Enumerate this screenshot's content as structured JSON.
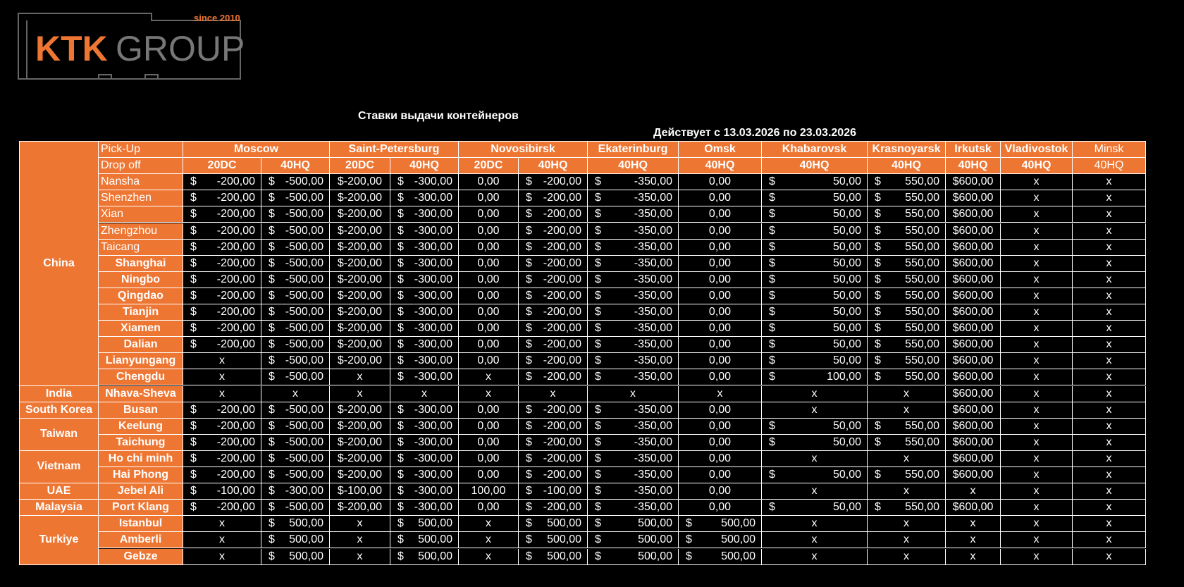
{
  "logo": {
    "tagline": "since 2010",
    "brand_accent": "KTK",
    "brand": "GROUP"
  },
  "title": "Ставки выдачи контейнеров",
  "validity": "Действует с 13.03.2026 по 23.03.2026",
  "table": {
    "pickup_label": "Pick-Up",
    "dropoff_label": "Drop off",
    "cities": [
      {
        "name": "Moscow",
        "types": [
          "20DC",
          "40HQ"
        ]
      },
      {
        "name": "Saint-Petersburg",
        "types": [
          "20DC",
          "40HQ"
        ]
      },
      {
        "name": "Novosibirsk",
        "types": [
          "20DC",
          "40HQ"
        ]
      },
      {
        "name": "Ekaterinburg",
        "types": [
          "40HQ"
        ]
      },
      {
        "name": "Omsk",
        "types": [
          "40HQ"
        ]
      },
      {
        "name": "Khabarovsk",
        "types": [
          "40HQ"
        ]
      },
      {
        "name": "Krasnoyarsk",
        "types": [
          "40HQ"
        ]
      },
      {
        "name": "Irkutsk",
        "types": [
          "40HQ"
        ]
      },
      {
        "name": "Vladivostok",
        "types": [
          "40HQ"
        ]
      },
      {
        "name": "Minsk",
        "types": [
          "40HQ"
        ]
      }
    ],
    "groups": [
      {
        "name": "China",
        "rows": [
          {
            "port": "Nansha",
            "cells": [
              [
                "$",
                "-200,00"
              ],
              [
                "$",
                "-500,00"
              ],
              "$-200,00",
              [
                "$",
                "-300,00"
              ],
              "0,00",
              [
                "$",
                "-200,00"
              ],
              [
                "$",
                "-350,00"
              ],
              "0,00",
              [
                "$",
                "50,00"
              ],
              [
                "$",
                "550,00"
              ],
              "$600,00",
              "x",
              "x"
            ]
          },
          {
            "port": "Shenzhen",
            "cells": [
              [
                "$",
                "-200,00"
              ],
              [
                "$",
                "-500,00"
              ],
              "$-200,00",
              [
                "$",
                "-300,00"
              ],
              "0,00",
              [
                "$",
                "-200,00"
              ],
              [
                "$",
                "-350,00"
              ],
              "0,00",
              [
                "$",
                "50,00"
              ],
              [
                "$",
                "550,00"
              ],
              "$600,00",
              "x",
              "x"
            ]
          },
          {
            "port": "Xian",
            "cells": [
              [
                "$",
                "-200,00"
              ],
              [
                "$",
                "-500,00"
              ],
              "$-200,00",
              [
                "$",
                "-300,00"
              ],
              "0,00",
              [
                "$",
                "-200,00"
              ],
              [
                "$",
                "-350,00"
              ],
              "0,00",
              [
                "$",
                "50,00"
              ],
              [
                "$",
                "550,00"
              ],
              "$600,00",
              "x",
              "x"
            ]
          },
          {
            "port": "Zhengzhou",
            "cells": [
              [
                "$",
                "-200,00"
              ],
              [
                "$",
                "-500,00"
              ],
              "$-200,00",
              [
                "$",
                "-300,00"
              ],
              "0,00",
              [
                "$",
                "-200,00"
              ],
              [
                "$",
                "-350,00"
              ],
              "0,00",
              [
                "$",
                "50,00"
              ],
              [
                "$",
                "550,00"
              ],
              "$600,00",
              "x",
              "x"
            ]
          },
          {
            "port": "Taicang",
            "cells": [
              [
                "$",
                "-200,00"
              ],
              [
                "$",
                "-500,00"
              ],
              "$-200,00",
              [
                "$",
                "-300,00"
              ],
              "0,00",
              [
                "$",
                "-200,00"
              ],
              [
                "$",
                "-350,00"
              ],
              "0,00",
              [
                "$",
                "50,00"
              ],
              [
                "$",
                "550,00"
              ],
              "$600,00",
              "x",
              "x"
            ]
          },
          {
            "port": "Shanghai",
            "cells": [
              [
                "$",
                "-200,00"
              ],
              [
                "$",
                "-500,00"
              ],
              "$-200,00",
              [
                "$",
                "-300,00"
              ],
              "0,00",
              [
                "$",
                "-200,00"
              ],
              [
                "$",
                "-350,00"
              ],
              "0,00",
              [
                "$",
                "50,00"
              ],
              [
                "$",
                "550,00"
              ],
              "$600,00",
              "x",
              "x"
            ]
          },
          {
            "port": "Ningbo",
            "cells": [
              [
                "$",
                "-200,00"
              ],
              [
                "$",
                "-500,00"
              ],
              "$-200,00",
              [
                "$",
                "-300,00"
              ],
              "0,00",
              [
                "$",
                "-200,00"
              ],
              [
                "$",
                "-350,00"
              ],
              "0,00",
              [
                "$",
                "50,00"
              ],
              [
                "$",
                "550,00"
              ],
              "$600,00",
              "x",
              "x"
            ]
          },
          {
            "port": "Qingdao",
            "cells": [
              [
                "$",
                "-200,00"
              ],
              [
                "$",
                "-500,00"
              ],
              "$-200,00",
              [
                "$",
                "-300,00"
              ],
              "0,00",
              [
                "$",
                "-200,00"
              ],
              [
                "$",
                "-350,00"
              ],
              "0,00",
              [
                "$",
                "50,00"
              ],
              [
                "$",
                "550,00"
              ],
              "$600,00",
              "x",
              "x"
            ]
          },
          {
            "port": "Tianjin",
            "cells": [
              [
                "$",
                "-200,00"
              ],
              [
                "$",
                "-500,00"
              ],
              "$-200,00",
              [
                "$",
                "-300,00"
              ],
              "0,00",
              [
                "$",
                "-200,00"
              ],
              [
                "$",
                "-350,00"
              ],
              "0,00",
              [
                "$",
                "50,00"
              ],
              [
                "$",
                "550,00"
              ],
              "$600,00",
              "x",
              "x"
            ]
          },
          {
            "port": "Xiamen",
            "cells": [
              [
                "$",
                "-200,00"
              ],
              [
                "$",
                "-500,00"
              ],
              "$-200,00",
              [
                "$",
                "-300,00"
              ],
              "0,00",
              [
                "$",
                "-200,00"
              ],
              [
                "$",
                "-350,00"
              ],
              "0,00",
              [
                "$",
                "50,00"
              ],
              [
                "$",
                "550,00"
              ],
              "$600,00",
              "x",
              "x"
            ]
          },
          {
            "port": "Dalian",
            "cells": [
              [
                "$",
                "-200,00"
              ],
              [
                "$",
                "-500,00"
              ],
              "$-200,00",
              [
                "$",
                "-300,00"
              ],
              "0,00",
              [
                "$",
                "-200,00"
              ],
              [
                "$",
                "-350,00"
              ],
              "0,00",
              [
                "$",
                "50,00"
              ],
              [
                "$",
                "550,00"
              ],
              "$600,00",
              "x",
              "x"
            ]
          },
          {
            "port": "Lianyungang",
            "cells": [
              "x",
              [
                "$",
                "-500,00"
              ],
              "$-200,00",
              [
                "$",
                "-300,00"
              ],
              "0,00",
              [
                "$",
                "-200,00"
              ],
              [
                "$",
                "-350,00"
              ],
              "0,00",
              [
                "$",
                "50,00"
              ],
              [
                "$",
                "550,00"
              ],
              "$600,00",
              "x",
              "x"
            ]
          },
          {
            "port": "Chengdu",
            "cells": [
              "x",
              [
                "$",
                "-500,00"
              ],
              "x",
              [
                "$",
                "-300,00"
              ],
              "x",
              [
                "$",
                "-200,00"
              ],
              [
                "$",
                "-350,00"
              ],
              "0,00",
              [
                "$",
                "100,00"
              ],
              [
                "$",
                "550,00"
              ],
              "$600,00",
              "x",
              "x"
            ]
          }
        ]
      },
      {
        "name": "India",
        "rows": [
          {
            "port": "Nhava-Sheva",
            "cells": [
              "x",
              "x",
              "x",
              "x",
              "x",
              "x",
              "x",
              "x",
              "x",
              "x",
              "$600,00",
              "x",
              "x"
            ]
          }
        ]
      },
      {
        "name": "South Korea",
        "rows": [
          {
            "port": "Busan",
            "cells": [
              [
                "$",
                "-200,00"
              ],
              [
                "$",
                "-500,00"
              ],
              "$-200,00",
              [
                "$",
                "-300,00"
              ],
              "0,00",
              [
                "$",
                "-200,00"
              ],
              [
                "$",
                "-350,00"
              ],
              "0,00",
              "x",
              "x",
              "$600,00",
              "x",
              "x"
            ]
          }
        ]
      },
      {
        "name": "Taiwan",
        "rows": [
          {
            "port": "Keelung",
            "cells": [
              [
                "$",
                "-200,00"
              ],
              [
                "$",
                "-500,00"
              ],
              "$-200,00",
              [
                "$",
                "-300,00"
              ],
              "0,00",
              [
                "$",
                "-200,00"
              ],
              [
                "$",
                "-350,00"
              ],
              "0,00",
              [
                "$",
                "50,00"
              ],
              [
                "$",
                "550,00"
              ],
              "$600,00",
              "x",
              "x"
            ]
          },
          {
            "port": "Taichung",
            "cells": [
              [
                "$",
                "-200,00"
              ],
              [
                "$",
                "-500,00"
              ],
              "$-200,00",
              [
                "$",
                "-300,00"
              ],
              "0,00",
              [
                "$",
                "-200,00"
              ],
              [
                "$",
                "-350,00"
              ],
              "0,00",
              [
                "$",
                "50,00"
              ],
              [
                "$",
                "550,00"
              ],
              "$600,00",
              "x",
              "x"
            ]
          }
        ]
      },
      {
        "name": "Vietnam",
        "rows": [
          {
            "port": "Ho chi minh",
            "cells": [
              [
                "$",
                "-200,00"
              ],
              [
                "$",
                "-500,00"
              ],
              "$-200,00",
              [
                "$",
                "-300,00"
              ],
              "0,00",
              [
                "$",
                "-200,00"
              ],
              [
                "$",
                "-350,00"
              ],
              "0,00",
              "x",
              "x",
              "$600,00",
              "x",
              "x"
            ]
          },
          {
            "port": "Hai Phong",
            "cells": [
              [
                "$",
                "-200,00"
              ],
              [
                "$",
                "-500,00"
              ],
              "$-200,00",
              [
                "$",
                "-300,00"
              ],
              "0,00",
              [
                "$",
                "-200,00"
              ],
              [
                "$",
                "-350,00"
              ],
              "0,00",
              [
                "$",
                "50,00"
              ],
              [
                "$",
                "550,00"
              ],
              "$600,00",
              "x",
              "x"
            ]
          }
        ]
      },
      {
        "name": "UAE",
        "rows": [
          {
            "port": "Jebel Ali",
            "cells": [
              [
                "$",
                "-100,00"
              ],
              [
                "$",
                "-300,00"
              ],
              "$-100,00",
              [
                "$",
                "-300,00"
              ],
              "100,00",
              [
                "$",
                "-100,00"
              ],
              [
                "$",
                "-350,00"
              ],
              "0,00",
              "x",
              "x",
              "x",
              "x",
              "x"
            ]
          }
        ]
      },
      {
        "name": "Malaysia",
        "rows": [
          {
            "port": "Port Klang",
            "cells": [
              [
                "$",
                "-200,00"
              ],
              [
                "$",
                "-500,00"
              ],
              "$-200,00",
              [
                "$",
                "-300,00"
              ],
              "0,00",
              [
                "$",
                "-200,00"
              ],
              [
                "$",
                "-350,00"
              ],
              "0,00",
              [
                "$",
                "50,00"
              ],
              [
                "$",
                "550,00"
              ],
              "$600,00",
              "x",
              "x"
            ]
          }
        ]
      },
      {
        "name": "Turkiye",
        "rows": [
          {
            "port": "Istanbul",
            "cells": [
              "x",
              [
                "$",
                "500,00"
              ],
              "x",
              [
                "$",
                "500,00"
              ],
              "x",
              [
                "$",
                "500,00"
              ],
              [
                "$",
                "500,00"
              ],
              [
                "$",
                "500,00"
              ],
              "x",
              "x",
              "x",
              "x",
              "x"
            ]
          },
          {
            "port": "Amberli",
            "cells": [
              "x",
              [
                "$",
                "500,00"
              ],
              "x",
              [
                "$",
                "500,00"
              ],
              "x",
              [
                "$",
                "500,00"
              ],
              [
                "$",
                "500,00"
              ],
              [
                "$",
                "500,00"
              ],
              "x",
              "x",
              "x",
              "x",
              "x"
            ]
          },
          {
            "port": "Gebze",
            "cells": [
              "x",
              [
                "$",
                "500,00"
              ],
              "x",
              [
                "$",
                "500,00"
              ],
              "x",
              [
                "$",
                "500,00"
              ],
              [
                "$",
                "500,00"
              ],
              [
                "$",
                "500,00"
              ],
              "x",
              "x",
              "x",
              "x",
              "x"
            ]
          }
        ]
      }
    ]
  }
}
